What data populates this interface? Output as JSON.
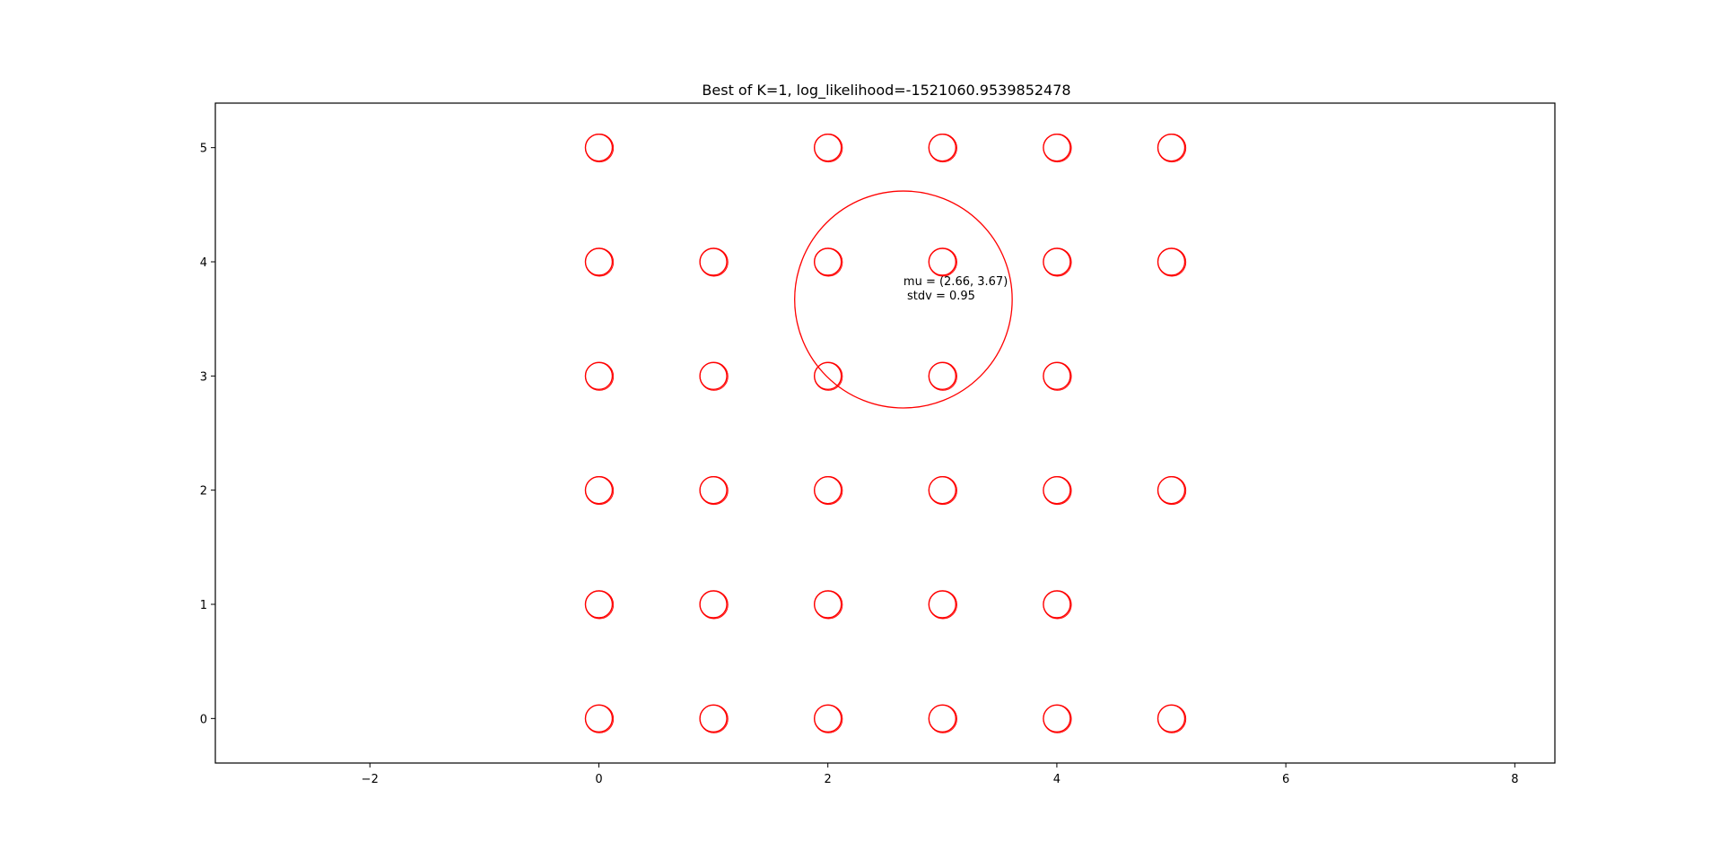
{
  "chart_data": {
    "type": "scatter",
    "title": "Best of K=1, log_likelihood=-1521060.9539852478",
    "xlabel": "",
    "ylabel": "",
    "xlim": [
      -3.35,
      8.35
    ],
    "ylim": [
      -0.39,
      5.39
    ],
    "x_ticks": [
      -2,
      0,
      2,
      4,
      6,
      8
    ],
    "x_tick_labels": [
      "−2",
      "0",
      "2",
      "4",
      "6",
      "8"
    ],
    "y_ticks": [
      0,
      1,
      2,
      3,
      4,
      5
    ],
    "y_tick_labels": [
      "0",
      "1",
      "2",
      "3",
      "4",
      "5"
    ],
    "grid": false,
    "marker": "hollow-circle",
    "marker_color": "#ff0000",
    "points": [
      [
        0,
        5
      ],
      [
        2,
        5
      ],
      [
        3,
        5
      ],
      [
        4,
        5
      ],
      [
        5,
        5
      ],
      [
        0,
        4
      ],
      [
        1,
        4
      ],
      [
        2,
        4
      ],
      [
        3,
        4
      ],
      [
        4,
        4
      ],
      [
        5,
        4
      ],
      [
        0,
        3
      ],
      [
        1,
        3
      ],
      [
        2,
        3
      ],
      [
        3,
        3
      ],
      [
        4,
        3
      ],
      [
        0,
        2
      ],
      [
        1,
        2
      ],
      [
        2,
        2
      ],
      [
        3,
        2
      ],
      [
        4,
        2
      ],
      [
        5,
        2
      ],
      [
        0,
        1
      ],
      [
        1,
        1
      ],
      [
        2,
        1
      ],
      [
        3,
        1
      ],
      [
        4,
        1
      ],
      [
        0,
        0
      ],
      [
        1,
        0
      ],
      [
        2,
        0
      ],
      [
        3,
        0
      ],
      [
        4,
        0
      ],
      [
        5,
        0
      ]
    ],
    "gaussian": {
      "mu": [
        2.66,
        3.67
      ],
      "stdv": 0.95,
      "color": "#ff0000",
      "label_line1": "mu = (2.66, 3.67)",
      "label_line2": " stdv = 0.95"
    }
  }
}
